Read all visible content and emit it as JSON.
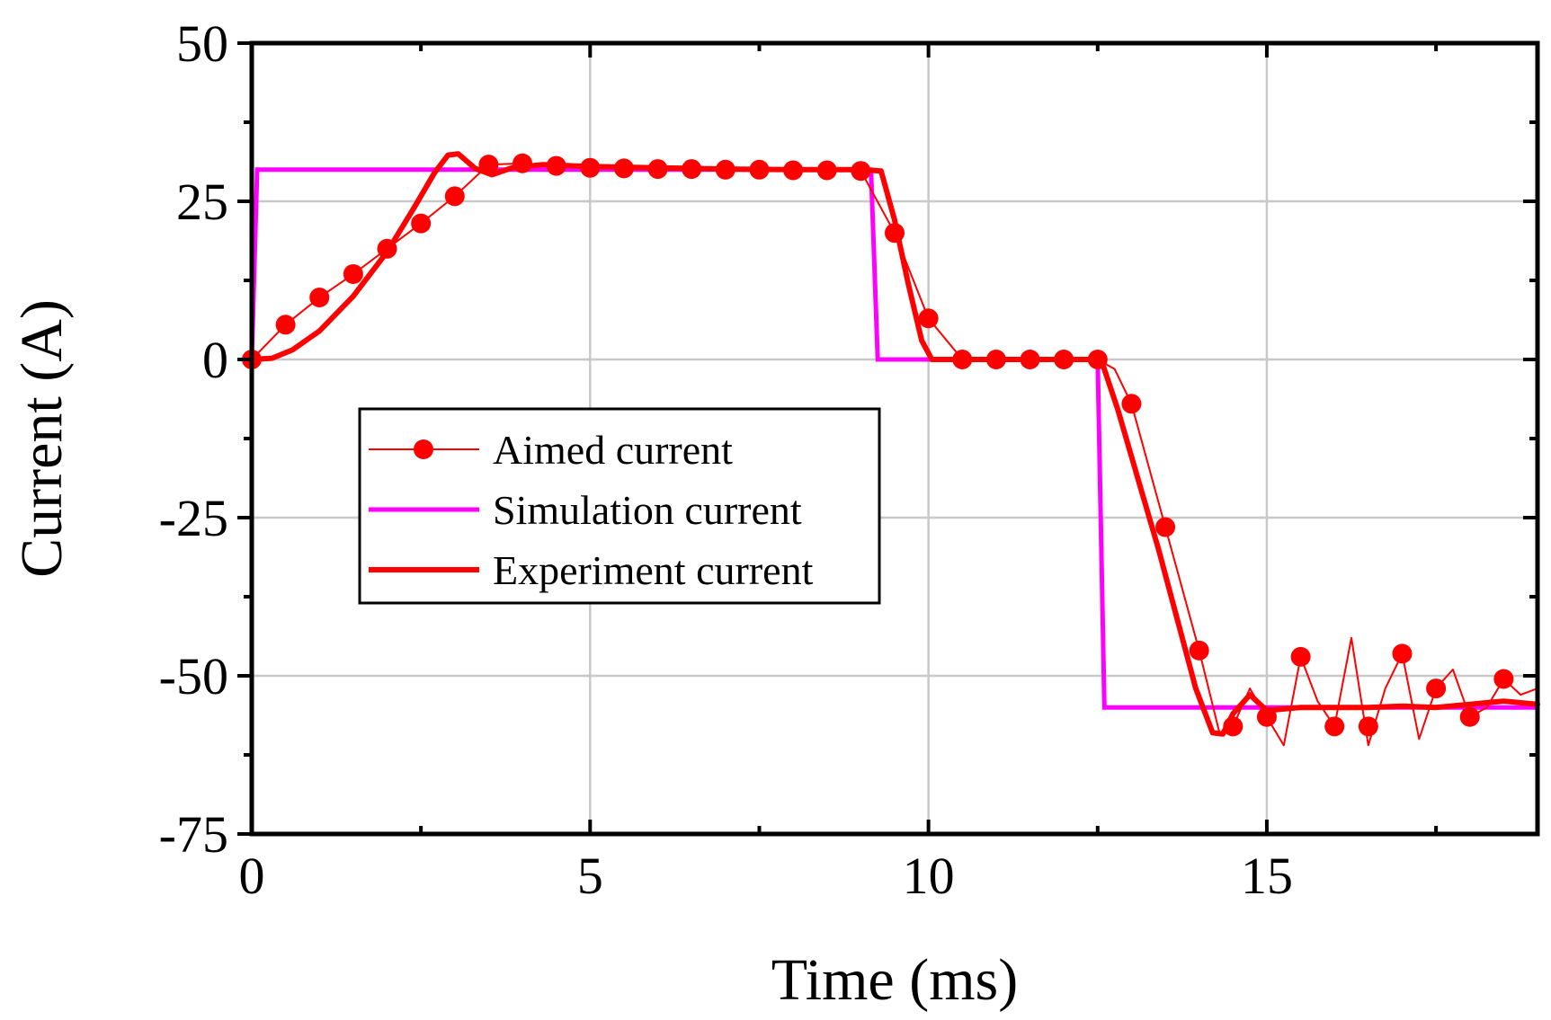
{
  "chart_data": {
    "type": "line",
    "title": "",
    "xlabel": "Time (ms)",
    "ylabel": "Current (A)",
    "xlim": [
      0,
      19
    ],
    "ylim": [
      -75,
      50
    ],
    "xticks": [
      0,
      5,
      10,
      15
    ],
    "xtick_labels": [
      "0",
      "5",
      "10",
      "15"
    ],
    "yticks": [
      50,
      25,
      0,
      -25,
      -50,
      -75
    ],
    "ytick_labels": [
      "50",
      "25",
      "0",
      "-25",
      "-50",
      "-75"
    ],
    "grid": true,
    "legend_position": "center-left",
    "colors": {
      "aimed": "#ff0000",
      "simulation": "#ff00ff",
      "experiment": "#ff0000",
      "grid": "#c8c8c8",
      "axis": "#000000"
    },
    "series": [
      {
        "name": "Aimed current",
        "style": "thin-line-with-markers",
        "x": [
          0,
          0.5,
          1,
          1.5,
          2,
          2.5,
          3,
          3.5,
          4,
          4.5,
          5,
          5.5,
          6,
          6.5,
          7,
          7.5,
          8,
          8.5,
          9,
          9.5,
          10,
          10.5,
          11,
          11.5,
          12,
          12.5,
          13,
          13.5,
          14,
          14.5,
          15,
          15.5,
          16,
          16.5,
          17,
          17.5,
          18,
          18.5
        ],
        "y": [
          0,
          5.5,
          9.8,
          13.5,
          17.5,
          21.5,
          25.8,
          30.8,
          31,
          30.6,
          30.3,
          30.2,
          30.1,
          30.1,
          30,
          30,
          29.9,
          29.9,
          29.8,
          20,
          6.5,
          0,
          0,
          0,
          0,
          0,
          -7,
          -26.5,
          -46,
          -58,
          -56.5,
          -47,
          -58,
          -58,
          -46.5,
          -52,
          -56.5,
          -50.5
        ],
        "trace_x": [
          0,
          0.5,
          1,
          1.5,
          2,
          2.5,
          3,
          3.5,
          4,
          4.5,
          5,
          5.5,
          6,
          6.5,
          7,
          7.5,
          8,
          8.5,
          9,
          9.5,
          10,
          10.5,
          11,
          11.5,
          12,
          12.5,
          12.75,
          13,
          13.5,
          14,
          14.3,
          14.5,
          14.75,
          15,
          15.25,
          15.5,
          15.75,
          16,
          16.25,
          16.5,
          16.75,
          17,
          17.25,
          17.5,
          17.75,
          18,
          18.25,
          18.5,
          18.75,
          19
        ],
        "trace_y": [
          0,
          5.5,
          9.8,
          13.5,
          17.5,
          21.5,
          25.8,
          30.8,
          31,
          30.6,
          30.3,
          30.2,
          30.1,
          30.1,
          30,
          30,
          29.9,
          29.9,
          29.8,
          20,
          6.5,
          0,
          0,
          0,
          0,
          0,
          -1.5,
          -7,
          -26.5,
          -46,
          -59,
          -58,
          -52,
          -56.5,
          -61,
          -47,
          -54,
          -58,
          -44,
          -61,
          -52,
          -46.5,
          -60,
          -52,
          -49,
          -56.5,
          -55,
          -50.5,
          -53,
          -52
        ]
      },
      {
        "name": "Simulation current",
        "style": "line",
        "x": [
          0,
          0.08,
          9.15,
          9.25,
          12.5,
          12.6,
          19
        ],
        "y": [
          0,
          30,
          30,
          0,
          0,
          -55,
          -55
        ]
      },
      {
        "name": "Experiment current",
        "style": "thick-line",
        "x": [
          0,
          0.3,
          0.6,
          1,
          1.5,
          2,
          2.4,
          2.7,
          2.9,
          3.05,
          3.3,
          3.55,
          3.85,
          4.3,
          5,
          6,
          7,
          8,
          9,
          9.3,
          9.5,
          9.7,
          9.9,
          10.05,
          10.5,
          11,
          12,
          12.55,
          12.8,
          13.1,
          13.4,
          13.7,
          13.95,
          14.2,
          14.35,
          14.5,
          14.75,
          15,
          15.5,
          16,
          16.5,
          17,
          17.5,
          18,
          18.5,
          19
        ],
        "y": [
          0,
          0.2,
          1.5,
          4.5,
          10,
          17,
          24,
          29.5,
          32.3,
          32.5,
          30.2,
          29.2,
          30.3,
          30.8,
          30.5,
          30.3,
          30.1,
          30,
          30,
          29.8,
          22,
          12,
          3,
          0,
          0,
          0,
          0,
          0,
          -8,
          -19,
          -30,
          -42,
          -52,
          -59,
          -59.2,
          -56,
          -53,
          -55.5,
          -55,
          -55,
          -55,
          -54.8,
          -55,
          -54.5,
          -54,
          -54.5
        ]
      }
    ]
  },
  "legend": {
    "items": [
      {
        "label": "Aimed current"
      },
      {
        "label": "Simulation current"
      },
      {
        "label": "Experiment current"
      }
    ]
  }
}
